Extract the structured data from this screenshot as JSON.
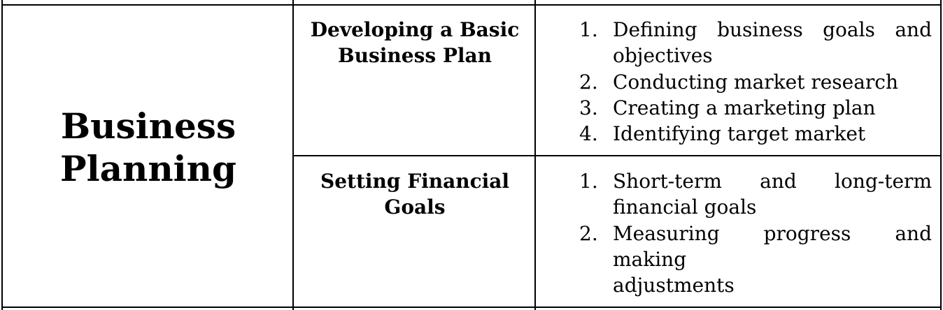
{
  "section": {
    "title_line1": "Business",
    "title_line2": "Planning"
  },
  "rows": [
    {
      "heading_line1": "Developing a Basic",
      "heading_line2": "Business Plan",
      "items": [
        {
          "number": "1.",
          "line1": "Defining business goals and",
          "line2": "objectives"
        },
        {
          "number": "2.",
          "line1": "Conducting market research"
        },
        {
          "number": "3.",
          "line1": "Creating a marketing plan"
        },
        {
          "number": "4.",
          "line1": "Identifying target market"
        }
      ]
    },
    {
      "heading_line1": "Setting Financial",
      "heading_line2": "Goals",
      "items": [
        {
          "number": "1.",
          "line1": "Short-term and long-term",
          "line2": "financial goals"
        },
        {
          "number": "2.",
          "line1": "Measuring progress and making",
          "line2": "adjustments"
        }
      ]
    }
  ]
}
